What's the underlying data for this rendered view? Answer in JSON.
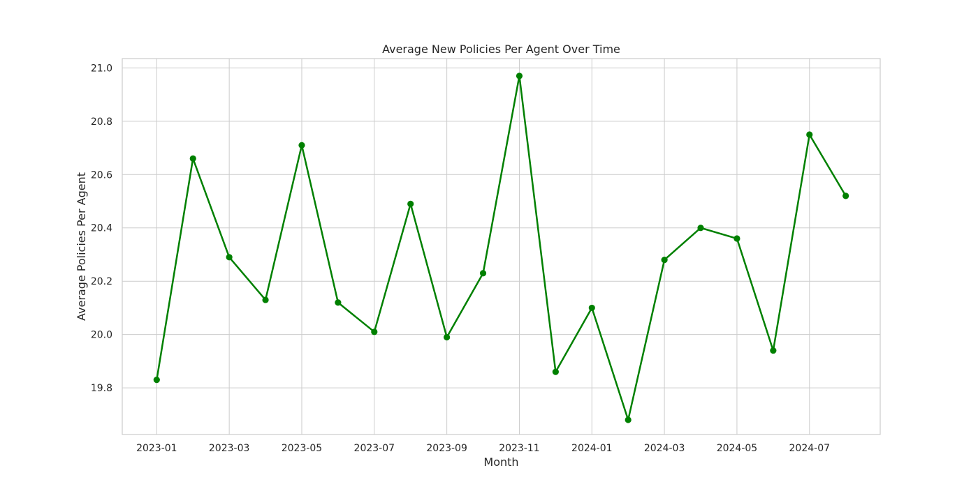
{
  "chart_data": {
    "type": "line",
    "title": "Average New Policies Per Agent Over Time",
    "xlabel": "Month",
    "ylabel": "Average Policies Per Agent",
    "x": [
      "2023-01",
      "2023-02",
      "2023-03",
      "2023-04",
      "2023-05",
      "2023-06",
      "2023-07",
      "2023-08",
      "2023-09",
      "2023-10",
      "2023-11",
      "2023-12",
      "2024-01",
      "2024-02",
      "2024-03",
      "2024-04",
      "2024-05",
      "2024-06",
      "2024-07",
      "2024-08"
    ],
    "series": [
      {
        "color": "#008000",
        "values": [
          19.83,
          20.66,
          20.29,
          20.13,
          20.71,
          20.12,
          20.01,
          20.49,
          19.99,
          20.23,
          20.97,
          19.86,
          20.1,
          19.68,
          20.28,
          20.4,
          20.36,
          19.94,
          20.75,
          20.52
        ]
      }
    ],
    "xticks": [
      "2023-01",
      "2023-03",
      "2023-05",
      "2023-07",
      "2023-09",
      "2023-11",
      "2024-01",
      "2024-03",
      "2024-05",
      "2024-07"
    ],
    "yticks": [
      19.8,
      20.0,
      20.2,
      20.4,
      20.6,
      20.8,
      21.0
    ],
    "ylim": [
      19.625,
      21.035
    ],
    "grid": true,
    "marker": "circle"
  }
}
